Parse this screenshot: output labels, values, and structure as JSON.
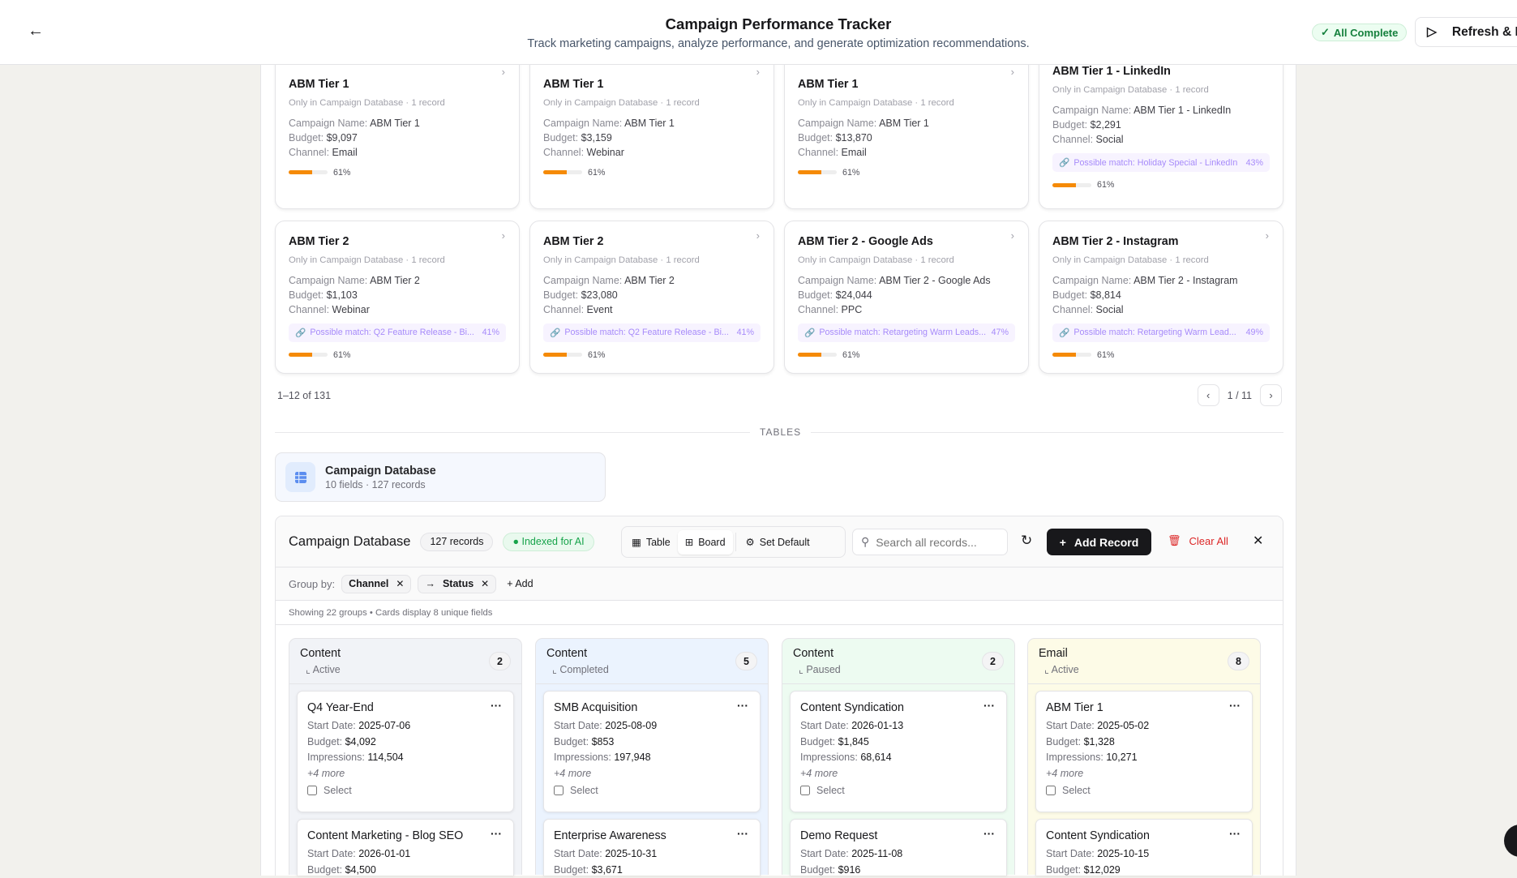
{
  "header": {
    "title": "Campaign Performance Tracker",
    "subtitle": "Track marketing campaigns, analyze performance, and generate optimization recommendations.",
    "status": "All Complete",
    "run_button": "Refresh & Ru"
  },
  "matches": {
    "row1": [
      {
        "name": "ABM Tier 1",
        "sub": "Only in Campaign Database · 1 record",
        "campaign": "ABM Tier 1",
        "budget": "$9,097",
        "channel": "Email",
        "match": "",
        "match_pct": "",
        "progress": "61%"
      },
      {
        "name": "ABM Tier 1",
        "sub": "Only in Campaign Database · 1 record",
        "campaign": "ABM Tier 1",
        "budget": "$3,159",
        "channel": "Webinar",
        "match": "",
        "match_pct": "",
        "progress": "61%"
      },
      {
        "name": "ABM Tier 1",
        "sub": "Only in Campaign Database · 1 record",
        "campaign": "ABM Tier 1",
        "budget": "$13,870",
        "channel": "Email",
        "match": "",
        "match_pct": "",
        "progress": "61%"
      },
      {
        "name": "ABM Tier 1 - LinkedIn",
        "sub": "Only in Campaign Database · 1 record",
        "campaign": "ABM Tier 1 - LinkedIn",
        "budget": "$2,291",
        "channel": "Social",
        "match": "Possible match: Holiday Special - LinkedIn",
        "match_pct": "43%",
        "progress": "61%"
      }
    ],
    "row2": [
      {
        "name": "ABM Tier 2",
        "sub": "Only in Campaign Database · 1 record",
        "campaign": "ABM Tier 2",
        "budget": "$1,103",
        "channel": "Webinar",
        "match": "Possible match: Q2 Feature Release - Bi...",
        "match_pct": "41%",
        "progress": "61%"
      },
      {
        "name": "ABM Tier 2",
        "sub": "Only in Campaign Database · 1 record",
        "campaign": "ABM Tier 2",
        "budget": "$23,080",
        "channel": "Event",
        "match": "Possible match: Q2 Feature Release - Bi...",
        "match_pct": "41%",
        "progress": "61%"
      },
      {
        "name": "ABM Tier 2 - Google Ads",
        "sub": "Only in Campaign Database · 1 record",
        "campaign": "ABM Tier 2 - Google Ads",
        "budget": "$24,044",
        "channel": "PPC",
        "match": "Possible match: Retargeting Warm Leads...",
        "match_pct": "47%",
        "progress": "61%"
      },
      {
        "name": "ABM Tier 2 - Instagram",
        "sub": "Only in Campaign Database · 1 record",
        "campaign": "ABM Tier 2 - Instagram",
        "budget": "$8,814",
        "channel": "Social",
        "match": "Possible match: Retargeting Warm Lead...",
        "match_pct": "49%",
        "progress": "61%"
      }
    ],
    "labels": {
      "campaign": "Campaign Name:",
      "budget": "Budget:",
      "channel": "Channel:"
    },
    "range": "1–12 of 131",
    "page": "1 / 11"
  },
  "tables": {
    "section_label": "TABLES",
    "name": "Campaign Database",
    "meta": "10 fields · 127 records"
  },
  "db": {
    "title": "Campaign Database",
    "records": "127 records",
    "indexed": "Indexed for AI",
    "views": {
      "table": "Table",
      "board": "Board",
      "set_default": "Set Default"
    },
    "search_placeholder": "Search all records...",
    "add_record": "Add Record",
    "clear_all": "Clear All",
    "group_by_label": "Group by:",
    "groups": [
      "Channel",
      "Status"
    ],
    "add_group": "Add",
    "info": "Showing 22 groups • Cards display 8 unique fields",
    "field_labels": {
      "start": "Start Date:",
      "budget": "Budget:",
      "impressions": "Impressions:"
    },
    "select_label": "Select",
    "columns": [
      {
        "group": "Content",
        "status": "Active",
        "count": "2",
        "color": "#f1f3f7",
        "cards": [
          {
            "title": "Q4 Year-End",
            "start": "2025-07-06",
            "budget": "$4,092",
            "impressions": "114,504",
            "more": "+4 more"
          },
          {
            "title": "Content Marketing - Blog SEO",
            "start": "2026-01-01",
            "budget": "$4,500"
          }
        ]
      },
      {
        "group": "Content",
        "status": "Completed",
        "count": "5",
        "color": "#ebf3fe",
        "cards": [
          {
            "title": "SMB Acquisition",
            "start": "2025-08-09",
            "budget": "$853",
            "impressions": "197,948",
            "more": "+4 more"
          },
          {
            "title": "Enterprise Awareness",
            "start": "2025-10-31",
            "budget": "$3,671"
          }
        ]
      },
      {
        "group": "Content",
        "status": "Paused",
        "count": "2",
        "color": "#edfbf1",
        "cards": [
          {
            "title": "Content Syndication",
            "start": "2026-01-13",
            "budget": "$1,845",
            "impressions": "68,614",
            "more": "+4 more"
          },
          {
            "title": "Demo Request",
            "start": "2025-11-08",
            "budget": "$916"
          }
        ]
      },
      {
        "group": "Email",
        "status": "Active",
        "count": "8",
        "color": "#fdfbe7",
        "cards": [
          {
            "title": "ABM Tier 1",
            "start": "2025-05-02",
            "budget": "$1,328",
            "impressions": "10,271",
            "more": "+4 more"
          },
          {
            "title": "Content Syndication",
            "start": "2025-10-15",
            "budget": "$12,029"
          }
        ]
      }
    ]
  }
}
